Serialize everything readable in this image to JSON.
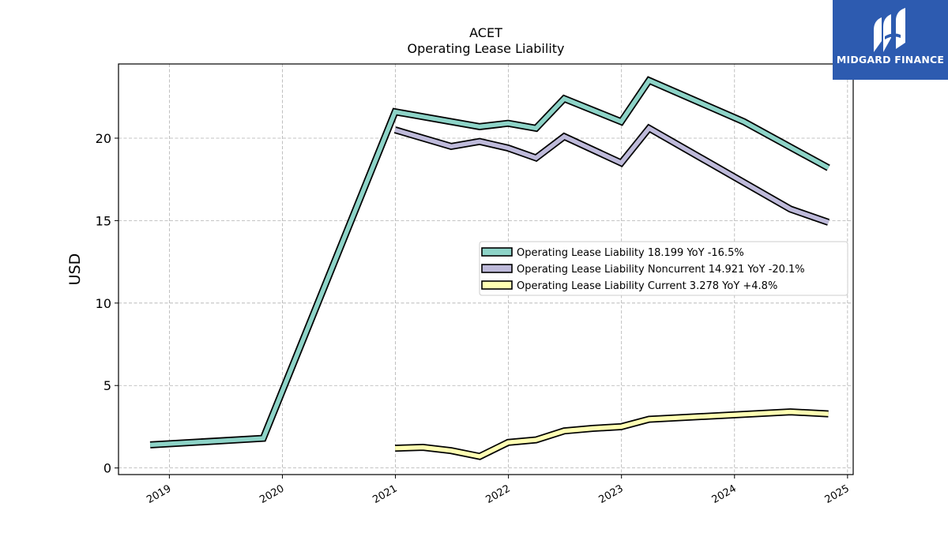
{
  "chart_data": {
    "type": "line",
    "title": "ACET",
    "subtitle": "Operating Lease Liability",
    "ylabel": "USD",
    "xlabel": "",
    "ylim": [
      -0.4,
      24.5
    ],
    "xlim": [
      2018.55,
      2025.05
    ],
    "yticks": [
      0,
      5,
      10,
      15,
      20
    ],
    "xticks": [
      "2019",
      "2020",
      "2021",
      "2022",
      "2023",
      "2024",
      "2025"
    ],
    "grid": true,
    "legend_position": "center-right",
    "series": [
      {
        "name": "Operating Lease Liability",
        "legend_label": "Operating Lease Liability  18.199 YoY -16.5%",
        "color": "#8dd3c7",
        "points": [
          [
            "2018-10-31",
            1.4
          ],
          [
            "2019-10-31",
            1.8
          ],
          [
            "2020-12-31",
            21.6
          ],
          [
            "2021-09-30",
            20.7
          ],
          [
            "2021-12-31",
            20.9
          ],
          [
            "2022-03-31",
            20.6
          ],
          [
            "2022-06-30",
            22.4
          ],
          [
            "2022-12-31",
            21.0
          ],
          [
            "2023-03-31",
            23.5
          ],
          [
            "2024-01-31",
            21.0
          ],
          [
            "2024-10-31",
            18.2
          ]
        ]
      },
      {
        "name": "Operating Lease Liability Noncurrent",
        "legend_label": "Operating Lease Liability Noncurrent  14.921 YoY -20.1%",
        "color": "#bebada",
        "points": [
          [
            "2020-12-31",
            20.5
          ],
          [
            "2021-06-30",
            19.5
          ],
          [
            "2021-09-30",
            19.8
          ],
          [
            "2021-12-31",
            19.4
          ],
          [
            "2022-03-31",
            18.8
          ],
          [
            "2022-06-30",
            20.1
          ],
          [
            "2022-12-31",
            18.5
          ],
          [
            "2023-03-31",
            20.6
          ],
          [
            "2024-06-30",
            15.7
          ],
          [
            "2024-10-31",
            14.9
          ]
        ]
      },
      {
        "name": "Operating Lease Liability Current",
        "legend_label": "Operating Lease Liability Current  3.278 YoY +4.8%",
        "color": "#ffffb3",
        "points": [
          [
            "2020-12-31",
            1.2
          ],
          [
            "2021-03-31",
            1.25
          ],
          [
            "2021-06-30",
            1.05
          ],
          [
            "2021-09-30",
            0.7
          ],
          [
            "2021-12-31",
            1.55
          ],
          [
            "2022-03-31",
            1.7
          ],
          [
            "2022-06-30",
            2.25
          ],
          [
            "2022-09-30",
            2.4
          ],
          [
            "2022-12-31",
            2.5
          ],
          [
            "2023-03-31",
            2.95
          ],
          [
            "2024-06-30",
            3.4
          ],
          [
            "2024-10-31",
            3.28
          ]
        ]
      }
    ]
  },
  "logo": {
    "text": "MIDGARD FINANCE",
    "background": "#2d5bb0"
  }
}
